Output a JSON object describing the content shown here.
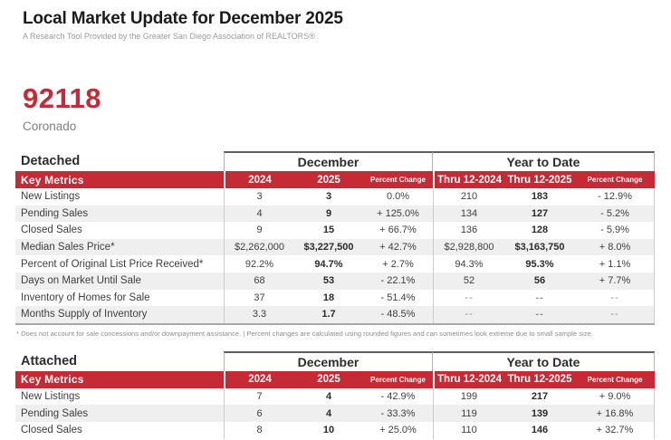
{
  "page": {
    "title": "Local Market Update for December 2025",
    "subtitle": "A Research Tool Provided by the Greater San Diego Association of REALTORS®",
    "zip": "92118",
    "area": "Coronado",
    "footnote": "* Does not account for sale concessions and/or downpayment assistance.  |  Percent changes are calculated using rounded figures and can sometimes look extreme due to small sample size."
  },
  "colors": {
    "accent_red": "#c62a35",
    "zip_red": "#c52a38",
    "stripe_gray": "#efefef",
    "subtitle_gray": "#9b9b9b",
    "text_dark": "#2d2d2d"
  },
  "tables": [
    {
      "section": "Detached",
      "group_month": "December",
      "group_ytd": "Year to Date",
      "key_metrics_label": "Key Metrics",
      "columns": [
        "2024",
        "2025",
        "Percent Change",
        "Thru 12-2024",
        "Thru 12-2025",
        "Percent Change"
      ],
      "rows": [
        {
          "label": "New Listings",
          "values": [
            "3",
            "3",
            "0.0%",
            "210",
            "183",
            "- 12.9%"
          ]
        },
        {
          "label": "Pending Sales",
          "values": [
            "4",
            "9",
            "+ 125.0%",
            "134",
            "127",
            "- 5.2%"
          ]
        },
        {
          "label": "Closed Sales",
          "values": [
            "9",
            "15",
            "+ 66.7%",
            "136",
            "128",
            "- 5.9%"
          ]
        },
        {
          "label": "Median Sales Price*",
          "values": [
            "$2,262,000",
            "$3,227,500",
            "+ 42.7%",
            "$2,928,800",
            "$3,163,750",
            "+ 8.0%"
          ]
        },
        {
          "label": "Percent of Original List Price Received*",
          "values": [
            "92.2%",
            "94.7%",
            "+ 2.7%",
            "94.3%",
            "95.3%",
            "+ 1.1%"
          ]
        },
        {
          "label": "Days on Market Until Sale",
          "values": [
            "68",
            "53",
            "- 22.1%",
            "52",
            "56",
            "+ 7.7%"
          ]
        },
        {
          "label": "Inventory of Homes for Sale",
          "values": [
            "37",
            "18",
            "- 51.4%",
            "--",
            "--",
            "--"
          ]
        },
        {
          "label": "Months Supply of Inventory",
          "values": [
            "3.3",
            "1.7",
            "- 48.5%",
            "--",
            "--",
            "--"
          ]
        }
      ]
    },
    {
      "section": "Attached",
      "group_month": "December",
      "group_ytd": "Year to Date",
      "key_metrics_label": "Key Metrics",
      "columns": [
        "2024",
        "2025",
        "Percent Change",
        "Thru 12-2024",
        "Thru 12-2025",
        "Percent Change"
      ],
      "rows": [
        {
          "label": "New Listings",
          "values": [
            "7",
            "4",
            "- 42.9%",
            "199",
            "217",
            "+ 9.0%"
          ]
        },
        {
          "label": "Pending Sales",
          "values": [
            "6",
            "4",
            "- 33.3%",
            "119",
            "139",
            "+ 16.8%"
          ]
        },
        {
          "label": "Closed Sales",
          "values": [
            "8",
            "10",
            "+ 25.0%",
            "110",
            "146",
            "+ 32.7%"
          ]
        }
      ]
    }
  ]
}
